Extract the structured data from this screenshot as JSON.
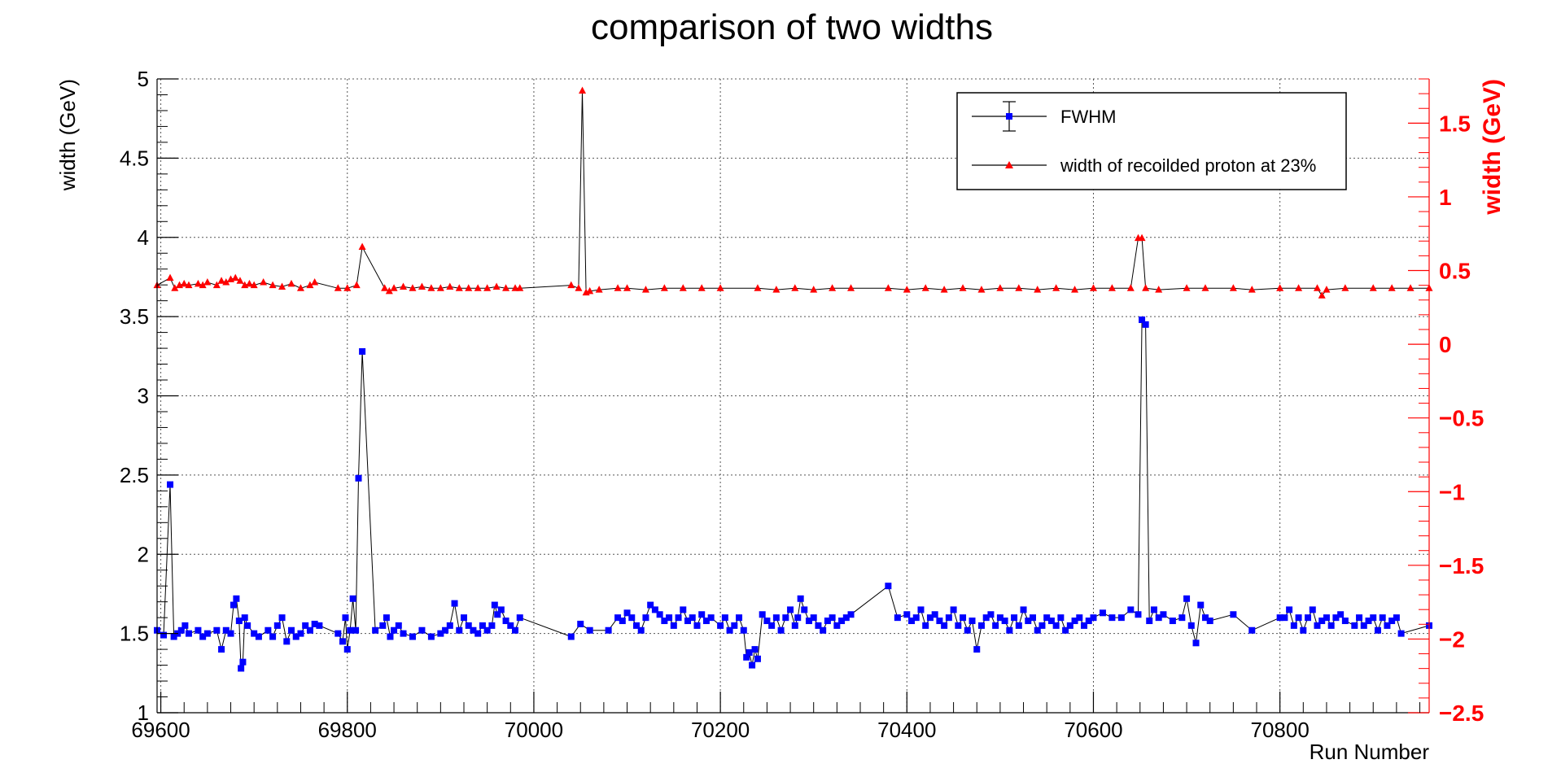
{
  "chart_data": {
    "type": "line",
    "title": "comparison of two widths",
    "xlabel": "Run Number",
    "ylabel": "width (GeV)",
    "ylabel_right": "width (GeV)",
    "xlim": [
      69596,
      70960
    ],
    "ylim": [
      1,
      5
    ],
    "ylim_right": [
      -2.5,
      1.8
    ],
    "x_ticks": [
      69600,
      69800,
      70000,
      70200,
      70400,
      70600,
      70800
    ],
    "y_ticks": [
      1,
      1.5,
      2,
      2.5,
      3,
      3.5,
      4,
      4.5,
      5
    ],
    "y_ticks_right": [
      -2.5,
      -2,
      -1.5,
      -1,
      -0.5,
      0,
      0.5,
      1,
      1.5
    ],
    "x_tick_labels": [
      "69600",
      "69800",
      "70000",
      "70200",
      "70400",
      "70600",
      "70800"
    ],
    "y_tick_labels": [
      "1",
      "1.5",
      "2",
      "2.5",
      "3",
      "3.5",
      "4",
      "4.5",
      "5"
    ],
    "y_tick_labels_right": [
      "−2.5",
      "−2",
      "−1.5",
      "−1",
      "−0.5",
      "0",
      "0.5",
      "1",
      "1.5"
    ],
    "grid": true,
    "legend_position": "top-right",
    "colors": {
      "fwhm": "#0000ff",
      "proton": "#ff0000",
      "right_axis": "#ff0000",
      "line": "#000000"
    },
    "series": [
      {
        "name": "FWHM",
        "axis": "left",
        "marker": "square",
        "x": [
          69596,
          69603,
          69610,
          69614,
          69618,
          69622,
          69626,
          69630,
          69640,
          69645,
          69650,
          69660,
          69665,
          69670,
          69675,
          69678,
          69681,
          69684,
          69686,
          69688,
          69690,
          69693,
          69700,
          69705,
          69715,
          69720,
          69725,
          69730,
          69735,
          69740,
          69745,
          69750,
          69755,
          69760,
          69765,
          69770,
          69790,
          69795,
          69798,
          69800,
          69803,
          69806,
          69809,
          69812,
          69816,
          69830,
          69838,
          69842,
          69846,
          69850,
          69855,
          69860,
          69870,
          69880,
          69890,
          69900,
          69905,
          69910,
          69915,
          69920,
          69925,
          69930,
          69935,
          69940,
          69945,
          69950,
          69955,
          69958,
          69961,
          69965,
          69970,
          69975,
          69980,
          69985,
          70040,
          70050,
          70060,
          70080,
          70090,
          70095,
          70100,
          70105,
          70110,
          70115,
          70120,
          70125,
          70130,
          70135,
          70140,
          70145,
          70150,
          70155,
          70160,
          70165,
          70170,
          70175,
          70180,
          70185,
          70190,
          70200,
          70205,
          70210,
          70215,
          70220,
          70225,
          70228,
          70231,
          70234,
          70237,
          70240,
          70245,
          70250,
          70255,
          70260,
          70265,
          70270,
          70275,
          70280,
          70283,
          70286,
          70290,
          70295,
          70300,
          70305,
          70310,
          70315,
          70320,
          70325,
          70330,
          70335,
          70340,
          70380,
          70390,
          70400,
          70405,
          70410,
          70415,
          70420,
          70425,
          70430,
          70435,
          70440,
          70445,
          70450,
          70455,
          70460,
          70465,
          70470,
          70475,
          70480,
          70485,
          70490,
          70495,
          70500,
          70505,
          70510,
          70515,
          70520,
          70525,
          70530,
          70535,
          70540,
          70545,
          70550,
          70555,
          70560,
          70565,
          70570,
          70575,
          70580,
          70585,
          70590,
          70595,
          70600,
          70610,
          70620,
          70630,
          70640,
          70648,
          70652,
          70656,
          70660,
          70665,
          70670,
          70675,
          70685,
          70695,
          70700,
          70705,
          70710,
          70715,
          70720,
          70725,
          70750,
          70770,
          70800,
          70805,
          70810,
          70815,
          70820,
          70825,
          70830,
          70835,
          70840,
          70845,
          70850,
          70855,
          70860,
          70865,
          70870,
          70880,
          70885,
          70890,
          70895,
          70900,
          70905,
          70910,
          70915,
          70920,
          70925,
          70930,
          70960
        ],
        "y": [
          1.52,
          1.49,
          2.44,
          1.48,
          1.5,
          1.52,
          1.55,
          1.5,
          1.52,
          1.48,
          1.5,
          1.52,
          1.4,
          1.52,
          1.5,
          1.68,
          1.72,
          1.58,
          1.28,
          1.32,
          1.6,
          1.55,
          1.5,
          1.48,
          1.52,
          1.48,
          1.55,
          1.6,
          1.45,
          1.52,
          1.48,
          1.5,
          1.55,
          1.52,
          1.56,
          1.55,
          1.5,
          1.45,
          1.6,
          1.4,
          1.52,
          1.72,
          1.52,
          2.48,
          3.28,
          1.52,
          1.55,
          1.6,
          1.48,
          1.52,
          1.55,
          1.5,
          1.48,
          1.52,
          1.48,
          1.5,
          1.52,
          1.55,
          1.69,
          1.52,
          1.6,
          1.55,
          1.52,
          1.5,
          1.55,
          1.52,
          1.55,
          1.68,
          1.62,
          1.65,
          1.58,
          1.55,
          1.52,
          1.6,
          1.48,
          1.56,
          1.52,
          1.52,
          1.6,
          1.58,
          1.63,
          1.6,
          1.55,
          1.52,
          1.6,
          1.68,
          1.65,
          1.62,
          1.58,
          1.6,
          1.55,
          1.6,
          1.65,
          1.58,
          1.6,
          1.55,
          1.62,
          1.58,
          1.6,
          1.55,
          1.6,
          1.52,
          1.55,
          1.6,
          1.52,
          1.35,
          1.38,
          1.3,
          1.4,
          1.34,
          1.62,
          1.58,
          1.55,
          1.6,
          1.52,
          1.6,
          1.65,
          1.55,
          1.6,
          1.72,
          1.65,
          1.58,
          1.6,
          1.55,
          1.52,
          1.58,
          1.6,
          1.55,
          1.58,
          1.6,
          1.62,
          1.8,
          1.6,
          1.62,
          1.58,
          1.6,
          1.65,
          1.55,
          1.6,
          1.62,
          1.58,
          1.55,
          1.6,
          1.65,
          1.55,
          1.6,
          1.52,
          1.58,
          1.4,
          1.55,
          1.6,
          1.62,
          1.55,
          1.6,
          1.58,
          1.52,
          1.6,
          1.55,
          1.65,
          1.58,
          1.6,
          1.52,
          1.55,
          1.6,
          1.58,
          1.55,
          1.6,
          1.52,
          1.55,
          1.58,
          1.6,
          1.55,
          1.58,
          1.6,
          1.63,
          1.6,
          1.6,
          1.65,
          1.62,
          3.48,
          3.45,
          1.58,
          1.65,
          1.6,
          1.62,
          1.58,
          1.6,
          1.72,
          1.55,
          1.44,
          1.68,
          1.6,
          1.58,
          1.62,
          1.52,
          1.6,
          1.6,
          1.65,
          1.55,
          1.6,
          1.52,
          1.6,
          1.65,
          1.55,
          1.58,
          1.6,
          1.55,
          1.6,
          1.62,
          1.58,
          1.55,
          1.6,
          1.55,
          1.58,
          1.6,
          1.52,
          1.6,
          1.55,
          1.58,
          1.6,
          1.5,
          1.55
        ]
      },
      {
        "name": "width of recoilded proton at 23%",
        "axis": "right",
        "marker": "triangle",
        "x": [
          69596,
          69610,
          69615,
          69620,
          69625,
          69630,
          69640,
          69645,
          69650,
          69660,
          69665,
          69670,
          69675,
          69680,
          69685,
          69690,
          69695,
          69700,
          69710,
          69720,
          69730,
          69740,
          69750,
          69760,
          69765,
          69790,
          69800,
          69810,
          69816,
          69840,
          69845,
          69850,
          69860,
          69870,
          69880,
          69890,
          69900,
          69910,
          69920,
          69930,
          69940,
          69950,
          69960,
          69970,
          69980,
          69985,
          70040,
          70048,
          70052,
          70056,
          70060,
          70070,
          70090,
          70100,
          70120,
          70140,
          70160,
          70180,
          70200,
          70240,
          70260,
          70280,
          70300,
          70320,
          70340,
          70380,
          70400,
          70420,
          70440,
          70460,
          70480,
          70500,
          70520,
          70540,
          70560,
          70580,
          70600,
          70620,
          70640,
          70648,
          70652,
          70656,
          70670,
          70700,
          70720,
          70750,
          70770,
          70800,
          70820,
          70840,
          70845,
          70850,
          70870,
          70900,
          70920,
          70940,
          70960
        ],
        "y": [
          0.4,
          0.45,
          0.38,
          0.4,
          0.41,
          0.4,
          0.41,
          0.4,
          0.42,
          0.4,
          0.43,
          0.42,
          0.44,
          0.45,
          0.43,
          0.4,
          0.41,
          0.4,
          0.42,
          0.4,
          0.39,
          0.41,
          0.38,
          0.4,
          0.42,
          0.38,
          0.38,
          0.4,
          0.66,
          0.38,
          0.36,
          0.38,
          0.39,
          0.38,
          0.39,
          0.38,
          0.38,
          0.39,
          0.38,
          0.38,
          0.38,
          0.38,
          0.39,
          0.38,
          0.38,
          0.38,
          0.4,
          0.38,
          1.72,
          0.35,
          0.36,
          0.37,
          0.38,
          0.38,
          0.37,
          0.38,
          0.38,
          0.38,
          0.38,
          0.38,
          0.37,
          0.38,
          0.37,
          0.38,
          0.38,
          0.38,
          0.37,
          0.38,
          0.37,
          0.38,
          0.37,
          0.38,
          0.38,
          0.37,
          0.38,
          0.37,
          0.38,
          0.38,
          0.38,
          0.72,
          0.72,
          0.38,
          0.37,
          0.38,
          0.38,
          0.38,
          0.37,
          0.38,
          0.38,
          0.38,
          0.33,
          0.37,
          0.38,
          0.38,
          0.38,
          0.38,
          0.38
        ]
      }
    ]
  }
}
